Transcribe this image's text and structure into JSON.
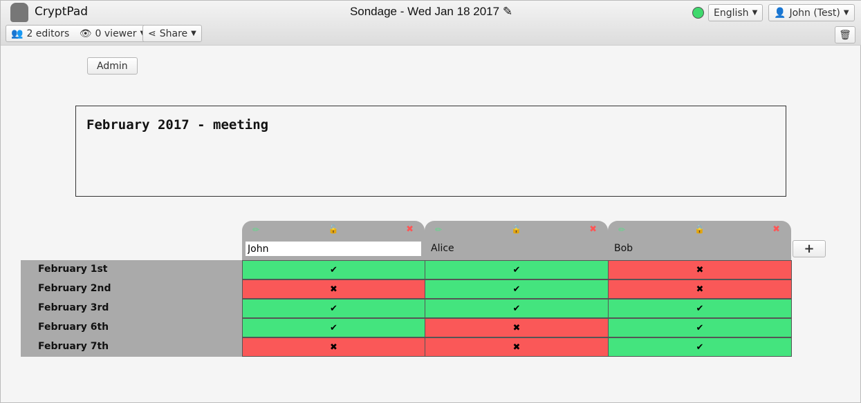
{
  "app": {
    "name": "CryptPad",
    "title": "Sondage - Wed Jan 18 2017",
    "edit_icon": "✎"
  },
  "toolbar": {
    "editors": "2 editors",
    "viewers": "0 viewer",
    "share": "Share",
    "language": "English",
    "user": "John (Test)",
    "status_color": "#3fd96d"
  },
  "admin_label": "Admin",
  "description": "February 2017 - meeting",
  "add_label": "+",
  "columns": [
    {
      "name": "John",
      "locked": false,
      "editing": true
    },
    {
      "name": "Alice",
      "locked": true
    },
    {
      "name": "Bob",
      "locked": true
    }
  ],
  "rows": [
    "February 1st",
    "February 2nd",
    "February 3rd",
    "February 6th",
    "February 7th"
  ],
  "votes": [
    [
      "yes",
      "no",
      "yes",
      "yes",
      "no"
    ],
    [
      "yes",
      "yes",
      "yes",
      "no",
      "no"
    ],
    [
      "no",
      "no",
      "yes",
      "yes",
      "yes"
    ]
  ],
  "colors": {
    "yes": "#44e47e",
    "no": "#fa5858"
  }
}
